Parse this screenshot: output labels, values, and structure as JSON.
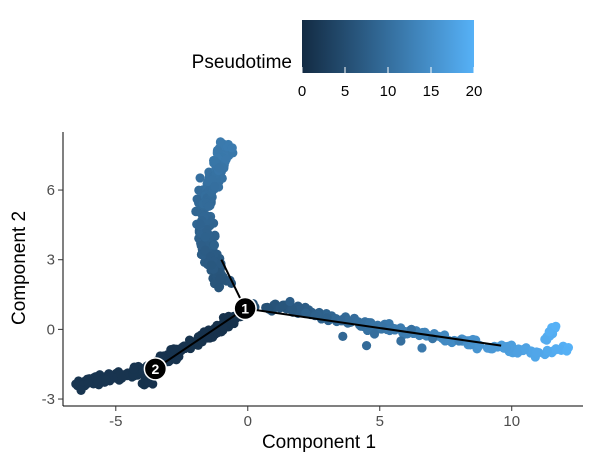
{
  "chart_data": {
    "type": "scatter",
    "xlabel": "Component 1",
    "ylabel": "Component 2",
    "xlim": [
      -7,
      12.7
    ],
    "ylim": [
      -3.3,
      8.5
    ],
    "x_ticks": [
      -5,
      0,
      5,
      10
    ],
    "y_ticks": [
      -3,
      0,
      3,
      6
    ],
    "grid": false,
    "legend": {
      "title": "Pseudotime",
      "placement": "top",
      "type": "colorbar",
      "range": [
        0,
        20
      ],
      "ticks": [
        0,
        5,
        10,
        15,
        20
      ],
      "color_low": "#132B43",
      "color_high": "#56B1F7"
    },
    "trajectory": {
      "segments": [
        {
          "from": "1",
          "to": "2"
        },
        {
          "from": "1",
          "to": "upper-branch"
        },
        {
          "from": "1",
          "to": "right-branch"
        }
      ],
      "nodes": [
        {
          "label": "1",
          "x": -0.1,
          "y": 0.9
        },
        {
          "label": "2",
          "x": -3.5,
          "y": -1.7
        }
      ],
      "tips": {
        "upper-branch": {
          "x": -1.0,
          "y": 3.0
        },
        "right-branch": {
          "x": 9.6,
          "y": -0.7
        }
      }
    },
    "branches": [
      {
        "name_hidden": "left",
        "path": [
          [
            -6.6,
            -2.4
          ],
          [
            -5.8,
            -2.2
          ],
          [
            -4.8,
            -2.0
          ],
          [
            -3.7,
            -1.7
          ],
          [
            -2.6,
            -0.9
          ],
          [
            -1.4,
            -0.2
          ],
          [
            -0.4,
            0.6
          ]
        ],
        "pseudotime": [
          1.5,
          1.0
        ],
        "spread": 0.18,
        "count": 240
      },
      {
        "name_hidden": "lower-stub",
        "path": [
          [
            -3.5,
            -1.7
          ],
          [
            -3.9,
            -2.4
          ]
        ],
        "pseudotime": [
          1.2,
          1.0
        ],
        "spread": 0.14,
        "count": 40
      },
      {
        "name_hidden": "upper",
        "path": [
          [
            -0.9,
            2.0
          ],
          [
            -1.3,
            2.8
          ],
          [
            -1.6,
            3.8
          ],
          [
            -1.7,
            4.8
          ],
          [
            -1.6,
            5.6
          ],
          [
            -1.3,
            6.5
          ],
          [
            -1.0,
            7.4
          ],
          [
            -0.8,
            8.0
          ]
        ],
        "pseudotime": [
          6.0,
          12.0
        ],
        "spread": 0.3,
        "count": 300
      },
      {
        "name_hidden": "right",
        "path": [
          [
            0.2,
            1.0
          ],
          [
            1.8,
            0.9
          ],
          [
            3.5,
            0.4
          ],
          [
            5.5,
            0.0
          ],
          [
            7.5,
            -0.4
          ],
          [
            9.5,
            -0.8
          ],
          [
            10.8,
            -1.0
          ],
          [
            11.7,
            -0.9
          ],
          [
            12.2,
            -0.7
          ]
        ],
        "pseudotime": [
          5.0,
          20.0
        ],
        "spread": 0.15,
        "count": 200
      },
      {
        "name_hidden": "right-tail",
        "path": [
          [
            11.3,
            -0.5
          ],
          [
            11.6,
            0.2
          ]
        ],
        "pseudotime": [
          19.0,
          20.0
        ],
        "spread": 0.1,
        "count": 12
      }
    ],
    "scattered_points": [
      [
        1.6,
        1.2,
        7.5
      ],
      [
        3.0,
        0.5,
        8.0
      ],
      [
        4.8,
        -0.2,
        10.0
      ],
      [
        4.5,
        -0.7,
        9.5
      ],
      [
        6.2,
        0.0,
        10.5
      ],
      [
        5.8,
        -0.5,
        10.0
      ],
      [
        7.0,
        -0.4,
        11.0
      ],
      [
        6.6,
        -0.8,
        11.5
      ],
      [
        8.0,
        -0.5,
        13.0
      ],
      [
        3.6,
        -0.3,
        9.0
      ],
      [
        2.2,
        0.7,
        8.0
      ]
    ]
  }
}
